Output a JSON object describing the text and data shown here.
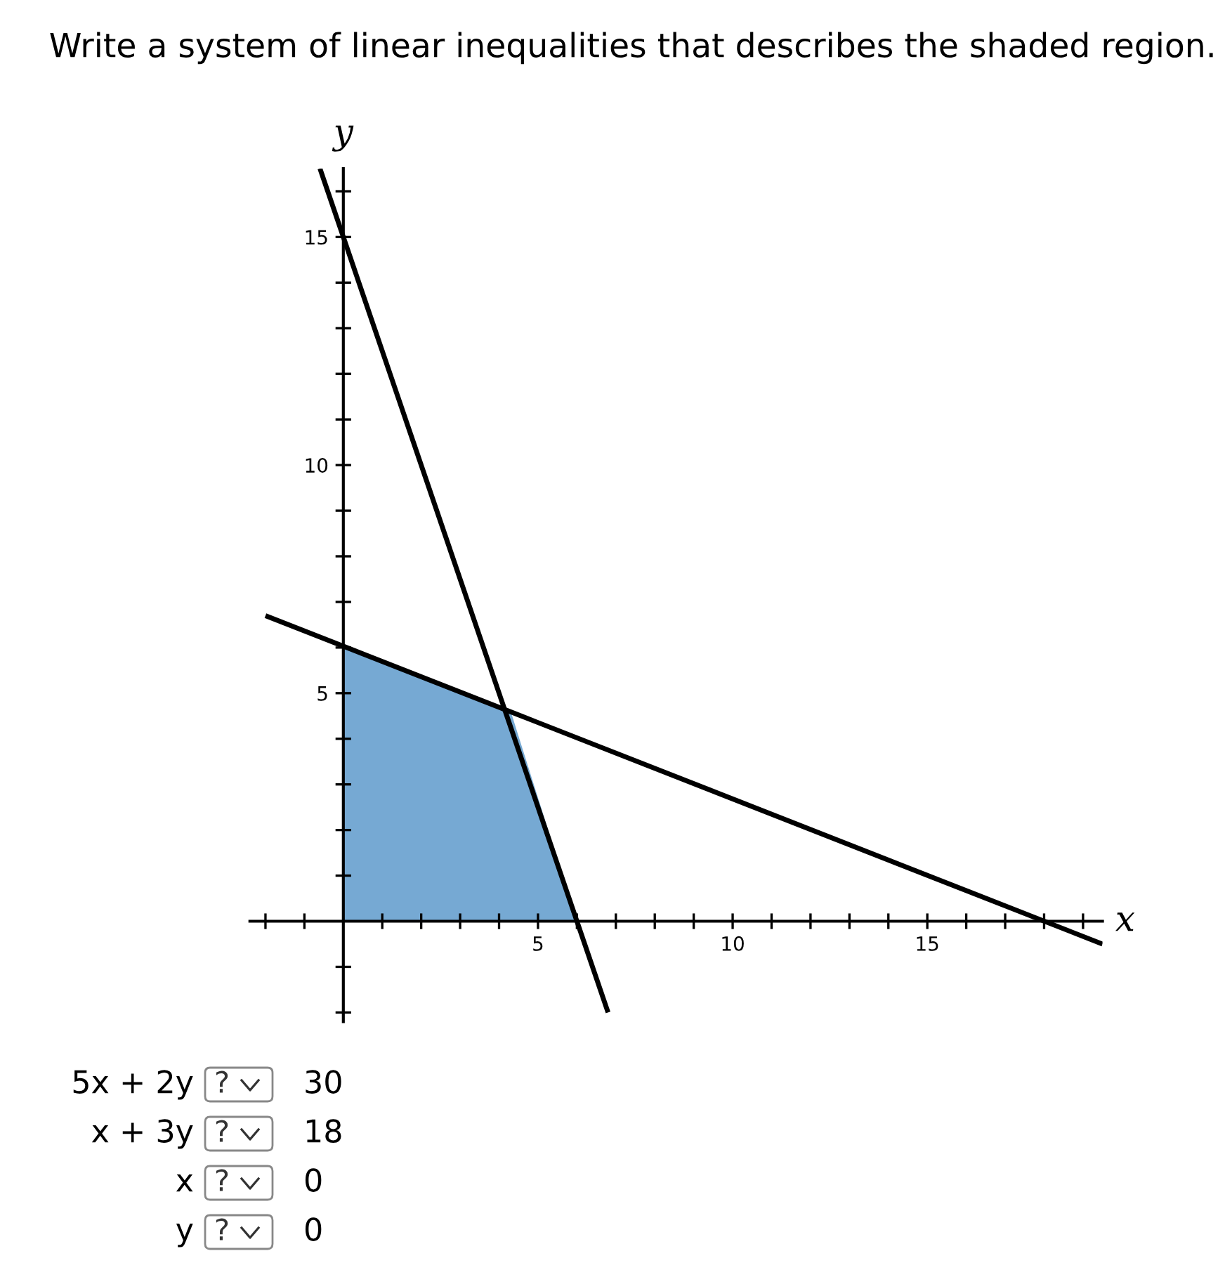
{
  "chart_data": {
    "type": "line",
    "title": "Write a system of linear inequalities that describes the shaded region.",
    "xlabel": "x",
    "ylabel": "y",
    "series": [
      {
        "type": "area",
        "color": "#76a9d3",
        "x": [
          0,
          4.3,
          6
        ],
        "values": [
          6,
          4.6,
          0
        ]
      },
      {
        "color": "#000000",
        "x": [
          -0.6,
          6.8
        ],
        "values": [
          16.5,
          -2
        ]
      },
      {
        "color": "#000000",
        "x": [
          -2,
          19.5
        ],
        "values": [
          6.7,
          -0.5
        ]
      }
    ],
    "xlim": [
      -2.4,
      19.5
    ],
    "ylim": [
      -2.2,
      16.5
    ],
    "xticks": [
      {
        "value": -2,
        "label": null
      },
      {
        "value": -1,
        "label": null
      },
      {
        "value": 1,
        "label": null
      },
      {
        "value": 2,
        "label": null
      },
      {
        "value": 3,
        "label": null
      },
      {
        "value": 4,
        "label": null
      },
      5,
      {
        "value": 6,
        "label": null
      },
      {
        "value": 7,
        "label": null
      },
      {
        "value": 8,
        "label": null
      },
      {
        "value": 9,
        "label": null
      },
      10,
      {
        "value": 11,
        "label": null
      },
      {
        "value": 12,
        "label": null
      },
      {
        "value": 13,
        "label": null
      },
      {
        "value": 14,
        "label": null
      },
      15,
      {
        "value": 16,
        "label": null
      },
      {
        "value": 17,
        "label": null
      },
      {
        "value": 18,
        "label": null
      },
      {
        "value": 19,
        "label": null
      }
    ],
    "yticks": [
      {
        "value": -2,
        "label": null
      },
      {
        "value": -1,
        "label": null
      },
      {
        "value": 1,
        "label": null
      },
      {
        "value": 2,
        "label": null
      },
      {
        "value": 3,
        "label": null
      },
      {
        "value": 4,
        "label": null
      },
      5,
      {
        "value": 6,
        "label": null
      },
      {
        "value": 7,
        "label": null
      },
      {
        "value": 8,
        "label": null
      },
      {
        "value": 9,
        "label": null
      },
      10,
      {
        "value": 11,
        "label": null
      },
      {
        "value": 12,
        "label": null
      },
      {
        "value": 13,
        "label": null
      },
      {
        "value": 14,
        "label": null
      },
      15,
      {
        "value": 16,
        "label": null
      }
    ],
    "grid": false,
    "legend": false,
    "annotations": [
      "5x + 2y",
      "?",
      "30",
      "x + 3y",
      "?",
      "18",
      "x",
      "?",
      "0",
      "y",
      "?",
      "0"
    ]
  }
}
